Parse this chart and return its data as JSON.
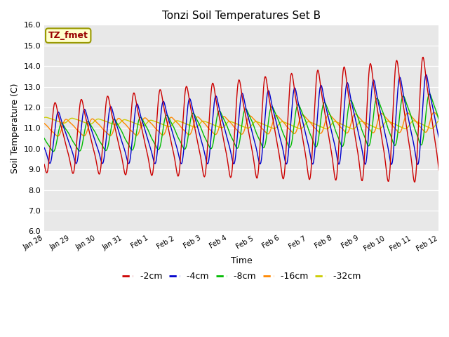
{
  "title": "Tonzi Soil Temperatures Set B",
  "xlabel": "Time",
  "ylabel": "Soil Temperature (C)",
  "ylim": [
    6.0,
    16.0
  ],
  "ytick_values": [
    6.0,
    7.0,
    8.0,
    9.0,
    10.0,
    11.0,
    12.0,
    13.0,
    14.0,
    15.0,
    16.0
  ],
  "ytick_labels": [
    "6.0",
    "7.0",
    "8.0",
    "9.0",
    "10.0",
    "11.0",
    "12.0",
    "13.0",
    "14.0",
    "15.0",
    "16.0"
  ],
  "xtick_labels": [
    "Jan 28",
    "Jan 29",
    "Jan 30",
    "Jan 31",
    "Feb 1",
    "Feb 2",
    "Feb 3",
    "Feb 4",
    "Feb 5",
    "Feb 6",
    "Feb 7",
    "Feb 8",
    "Feb 9",
    "Feb 10",
    "Feb 11",
    "Feb 12"
  ],
  "line_colors": {
    "-2cm": "#cc0000",
    "-4cm": "#0000cc",
    "-8cm": "#00bb00",
    "-16cm": "#ff8800",
    "-32cm": "#cccc00"
  },
  "legend_label": "TZ_fmet",
  "legend_bg": "#ffffcc",
  "legend_border": "#999900",
  "plot_bg": "#e8e8e8",
  "fig_bg": "#ffffff",
  "grid_color": "#ffffff",
  "title_fontsize": 11,
  "axis_label_fontsize": 9,
  "tick_fontsize": 8
}
